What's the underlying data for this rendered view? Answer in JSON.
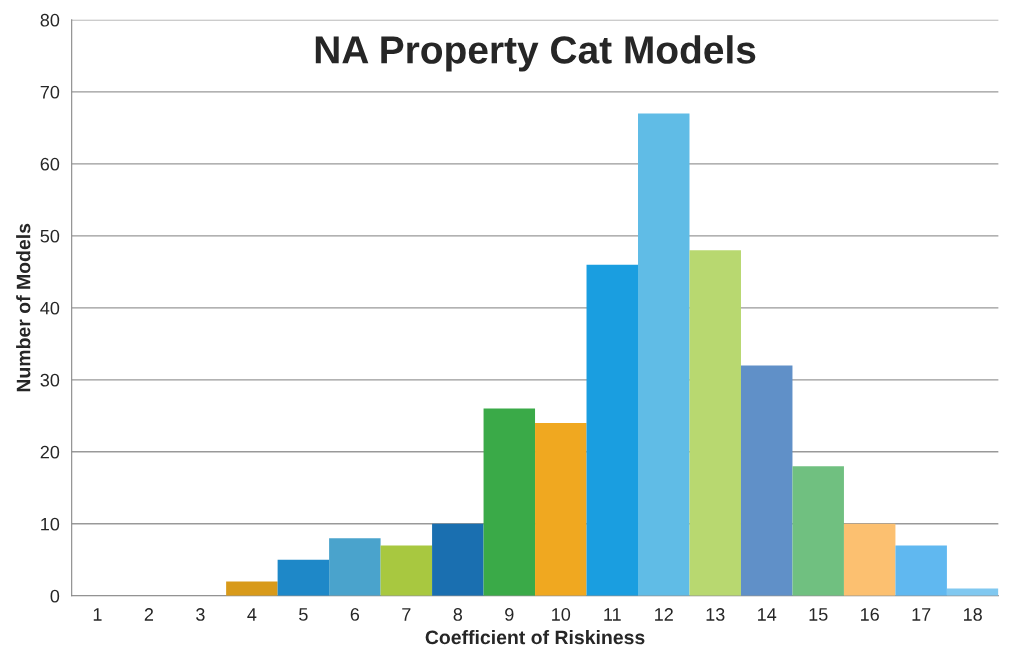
{
  "chart_data": {
    "type": "bar",
    "title": "NA Property Cat Models",
    "xlabel": "Coefficient of Riskiness",
    "ylabel": "Number of Models",
    "categories": [
      "1",
      "2",
      "3",
      "4",
      "5",
      "6",
      "7",
      "8",
      "9",
      "10",
      "11",
      "12",
      "13",
      "14",
      "15",
      "16",
      "17",
      "18"
    ],
    "values": [
      0,
      0,
      0,
      2,
      5,
      8,
      7,
      10,
      26,
      24,
      46,
      67,
      48,
      32,
      18,
      10,
      7,
      1
    ],
    "colors": [
      null,
      null,
      null,
      "#d89a1a",
      "#1e88c8",
      "#4aa3cc",
      "#a8c840",
      "#1a6fb0",
      "#3aaa48",
      "#f0a820",
      "#1a9ee0",
      "#60bce6",
      "#b8d870",
      "#6090c8",
      "#70c080",
      "#fcc070",
      "#60b8f0",
      "#80c8f0"
    ],
    "ylim": [
      0,
      80
    ],
    "yticks": [
      0,
      10,
      20,
      30,
      40,
      50,
      60,
      70,
      80
    ],
    "grid": "y"
  }
}
